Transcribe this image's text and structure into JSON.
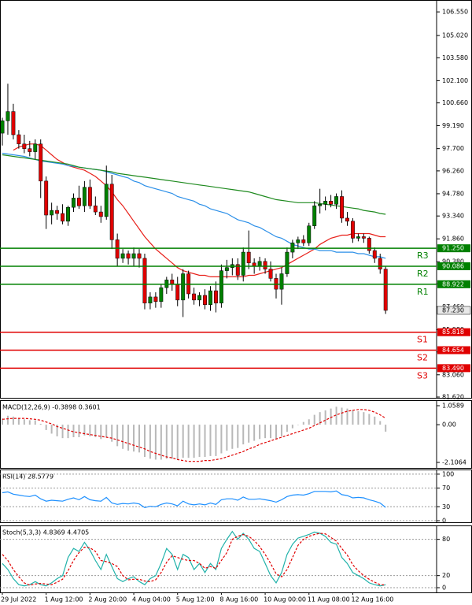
{
  "chart_data": [
    {
      "type": "candlestick",
      "categories": [
        "29 Jul 2022",
        null,
        null,
        null,
        null,
        null,
        null,
        null,
        "1 Aug 12:00",
        null,
        null,
        null,
        null,
        null,
        null,
        null,
        "2 Aug 20:00",
        null,
        null,
        null,
        null,
        null,
        null,
        null,
        "4 Aug 04:00",
        null,
        null,
        null,
        null,
        null,
        null,
        null,
        "5 Aug 12:00",
        null,
        null,
        null,
        null,
        null,
        null,
        null,
        "8 Aug 16:00",
        null,
        null,
        null,
        null,
        null,
        null,
        null,
        "10 Aug 00:00",
        null,
        null,
        null,
        null,
        null,
        null,
        null,
        "11 Aug 08:00",
        null,
        null,
        null,
        null,
        null,
        null,
        null,
        "12 Aug 16:00",
        null,
        null,
        null,
        null,
        null,
        null
      ],
      "open": [
        98.7,
        99.5,
        100.1,
        98.6,
        98.0,
        97.7,
        97.5,
        98.0,
        95.6,
        93.4,
        93.7,
        93.5,
        93.0,
        93.9,
        94.5,
        94.0,
        95.2,
        94.0,
        93.6,
        93.3,
        95.4,
        91.8,
        90.6,
        90.9,
        90.6,
        90.9,
        90.6,
        87.7,
        88.1,
        87.8,
        88.7,
        89.2,
        88.9,
        87.9,
        89.6,
        88.3,
        87.9,
        88.2,
        87.6,
        88.5,
        87.7,
        89.8,
        90.0,
        90.2,
        89.5,
        91.0,
        90.3,
        90.1,
        90.4,
        89.9,
        89.3,
        88.6,
        89.6,
        91.0,
        91.6,
        91.8,
        91.6,
        92.7,
        94.0,
        94.1,
        94.3,
        94.1,
        94.6,
        93.2,
        93.0,
        91.9,
        92.0,
        91.9,
        91.1,
        90.6,
        89.9
      ],
      "high": [
        99.7,
        101.9,
        100.6,
        98.9,
        98.6,
        98.2,
        98.3,
        98.3,
        95.9,
        94.2,
        94.0,
        94.1,
        94.0,
        94.8,
        95.3,
        95.6,
        95.7,
        94.6,
        94.0,
        96.6,
        96.0,
        92.2,
        91.2,
        91.1,
        91.3,
        91.2,
        90.9,
        88.4,
        88.4,
        88.9,
        89.4,
        89.6,
        89.4,
        89.9,
        89.8,
        88.7,
        88.4,
        88.6,
        88.8,
        89.1,
        90.2,
        90.5,
        90.6,
        90.6,
        91.3,
        92.4,
        90.6,
        90.7,
        90.6,
        90.4,
        89.6,
        90.0,
        91.3,
        91.8,
        92.0,
        92.1,
        92.9,
        94.3,
        95.1,
        94.6,
        94.7,
        94.8,
        95.0,
        93.6,
        93.2,
        92.2,
        92.2,
        92.0,
        91.3,
        90.9,
        90.1
      ],
      "low": [
        97.9,
        98.6,
        98.3,
        97.7,
        97.4,
        97.2,
        97.0,
        94.5,
        92.5,
        92.8,
        93.1,
        92.8,
        92.7,
        93.6,
        93.8,
        93.6,
        93.8,
        93.4,
        92.9,
        93.1,
        91.2,
        90.1,
        90.3,
        90.2,
        90.1,
        90.0,
        87.3,
        87.3,
        87.4,
        87.4,
        88.3,
        88.5,
        87.5,
        86.8,
        88.0,
        87.6,
        87.5,
        87.3,
        87.2,
        87.1,
        87.4,
        89.3,
        89.5,
        89.2,
        89.1,
        89.9,
        89.6,
        89.8,
        89.6,
        89.1,
        88.0,
        87.6,
        89.4,
        90.6,
        91.2,
        91.4,
        91.4,
        92.5,
        93.5,
        93.7,
        93.9,
        93.8,
        92.9,
        92.7,
        91.6,
        91.7,
        91.6,
        90.9,
        90.3,
        89.6,
        87.0
      ],
      "close": [
        99.5,
        100.1,
        98.6,
        98.0,
        97.7,
        97.5,
        98.0,
        95.6,
        93.4,
        93.7,
        93.5,
        93.0,
        93.9,
        94.5,
        94.0,
        95.2,
        94.0,
        93.6,
        93.3,
        95.4,
        91.8,
        90.6,
        90.9,
        90.6,
        90.9,
        90.6,
        87.7,
        88.1,
        87.8,
        88.7,
        89.2,
        88.9,
        87.9,
        89.6,
        88.3,
        87.9,
        88.2,
        87.6,
        88.5,
        87.7,
        89.8,
        90.0,
        90.2,
        89.5,
        91.0,
        90.3,
        90.1,
        90.4,
        89.9,
        89.3,
        88.6,
        89.6,
        91.0,
        91.6,
        91.8,
        91.6,
        92.7,
        94.0,
        94.1,
        94.3,
        94.1,
        94.6,
        93.2,
        93.0,
        91.9,
        92.0,
        91.9,
        91.1,
        90.6,
        89.9,
        87.23
      ],
      "up_color": "#008000",
      "down_color": "#e00000",
      "series": [
        {
          "color": "#e8201a",
          "values": [
            null,
            null,
            97.6,
            97.8,
            97.9,
            98.0,
            98.0,
            97.9,
            97.6,
            97.3,
            97.0,
            96.8,
            96.6,
            96.5,
            96.4,
            96.3,
            96.1,
            95.9,
            95.6,
            95.3,
            94.9,
            94.4,
            94.0,
            93.5,
            93.0,
            92.5,
            92.0,
            91.6,
            91.2,
            90.9,
            90.6,
            90.3,
            90.0,
            89.8,
            89.7,
            89.6,
            89.5,
            89.5,
            89.4,
            89.4,
            89.4,
            89.4,
            89.4,
            89.4,
            89.4,
            89.5,
            89.5,
            89.6,
            89.7,
            89.8,
            89.9,
            90.0,
            90.2,
            90.4,
            90.6,
            90.8,
            91.0,
            91.2,
            91.5,
            91.7,
            91.9,
            92.0,
            92.1,
            92.1,
            92.2,
            92.2,
            92.2,
            92.2,
            92.1,
            92.0,
            92.0
          ]
        },
        {
          "color": "#2b8fe8",
          "values": [
            97.4,
            97.35,
            97.3,
            97.25,
            97.2,
            97.1,
            97.0,
            96.9,
            96.85,
            96.8,
            96.75,
            96.7,
            96.6,
            96.55,
            96.5,
            96.45,
            96.4,
            96.35,
            96.3,
            96.2,
            96.1,
            96.0,
            95.9,
            95.8,
            95.6,
            95.5,
            95.3,
            95.2,
            95.1,
            95.0,
            94.9,
            94.8,
            94.6,
            94.5,
            94.4,
            94.3,
            94.1,
            94.0,
            93.8,
            93.7,
            93.6,
            93.5,
            93.3,
            93.1,
            93.0,
            92.9,
            92.7,
            92.6,
            92.4,
            92.2,
            92.0,
            91.9,
            91.7,
            91.5,
            91.4,
            91.3,
            91.2,
            91.2,
            91.1,
            91.1,
            91.1,
            91.0,
            91.0,
            91.0,
            91.0,
            90.9,
            90.9,
            90.8,
            90.7,
            90.7,
            90.6
          ]
        },
        {
          "color": "#1f8a1f",
          "values": [
            97.3,
            97.25,
            97.2,
            97.15,
            97.1,
            97.05,
            97.0,
            96.95,
            96.9,
            96.85,
            96.8,
            96.75,
            96.7,
            96.6,
            96.5,
            96.45,
            96.4,
            96.35,
            96.3,
            96.25,
            96.2,
            96.1,
            96.05,
            96.0,
            95.95,
            95.9,
            95.85,
            95.8,
            95.75,
            95.7,
            95.65,
            95.6,
            95.55,
            95.5,
            95.45,
            95.4,
            95.35,
            95.3,
            95.25,
            95.2,
            95.15,
            95.1,
            95.05,
            95.0,
            94.95,
            94.9,
            94.8,
            94.7,
            94.6,
            94.5,
            94.4,
            94.35,
            94.3,
            94.25,
            94.2,
            94.2,
            94.2,
            94.2,
            94.15,
            94.1,
            94.05,
            94.0,
            93.95,
            93.9,
            93.85,
            93.8,
            93.7,
            93.65,
            93.6,
            93.5,
            93.45
          ]
        }
      ],
      "ylim": [
        81.57,
        107.32
      ],
      "yticks": [
        {
          "value": 106.55,
          "label": "106.550"
        },
        {
          "value": 105.02,
          "label": "105.020"
        },
        {
          "value": 103.58,
          "label": "103.580"
        },
        {
          "value": 102.1,
          "label": "102.100"
        },
        {
          "value": 100.66,
          "label": "100.660"
        },
        {
          "value": 99.19,
          "label": "99.190"
        },
        {
          "value": 97.7,
          "label": "97.700"
        },
        {
          "value": 96.26,
          "label": "96.260"
        },
        {
          "value": 94.78,
          "label": "94.780"
        },
        {
          "value": 93.34,
          "label": "93.340"
        },
        {
          "value": 91.86,
          "label": "91.860"
        },
        {
          "value": 90.38,
          "label": "90.380"
        },
        {
          "value": 88.94,
          "label": "88.940"
        },
        {
          "value": 87.46,
          "label": "87.460"
        },
        {
          "value": 85.98,
          "label": "85.980"
        },
        {
          "value": 84.54,
          "label": "84.540"
        },
        {
          "value": 83.06,
          "label": "83.060"
        },
        {
          "value": 81.62,
          "label": "81.620"
        }
      ],
      "levels": [
        {
          "name": "R3",
          "value": 91.25,
          "label": "91.250",
          "color": "#008000"
        },
        {
          "name": "R2",
          "value": 90.086,
          "label": "90.086",
          "color": "#008000"
        },
        {
          "name": "R1",
          "value": 88.922,
          "label": "88.922",
          "color": "#008000"
        },
        {
          "name": "S1",
          "value": 85.818,
          "label": "85.818",
          "color": "#e00000"
        },
        {
          "name": "S2",
          "value": 84.654,
          "label": "84.654",
          "color": "#e00000"
        },
        {
          "name": "S3",
          "value": 83.49,
          "label": "83.490",
          "color": "#e00000"
        }
      ],
      "last": {
        "value": 87.23,
        "label": "87.230"
      },
      "grid": false
    },
    {
      "type": "macd",
      "title": "MACD(12,26,9) -0.3898 0.3601",
      "series": [
        {
          "type": "bar",
          "color": "#b8b8b8",
          "values": [
            0.35,
            0.5,
            0.45,
            0.35,
            0.3,
            0.25,
            0.25,
            0.05,
            -0.3,
            -0.5,
            -0.65,
            -0.75,
            -0.75,
            -0.7,
            -0.7,
            -0.6,
            -0.65,
            -0.7,
            -0.8,
            -0.7,
            -0.95,
            -1.2,
            -1.35,
            -1.45,
            -1.5,
            -1.55,
            -1.8,
            -1.9,
            -1.95,
            -1.95,
            -1.9,
            -1.9,
            -1.95,
            -1.85,
            -1.85,
            -1.85,
            -1.8,
            -1.8,
            -1.75,
            -1.75,
            -1.6,
            -1.45,
            -1.35,
            -1.3,
            -1.1,
            -1.0,
            -0.9,
            -0.8,
            -0.75,
            -0.75,
            -0.8,
            -0.65,
            -0.4,
            -0.2,
            0.0,
            0.15,
            0.3,
            0.55,
            0.7,
            0.8,
            0.9,
            1.0,
            0.95,
            0.9,
            0.8,
            0.75,
            0.7,
            0.6,
            0.45,
            0.2,
            -0.3898
          ]
        },
        {
          "type": "line",
          "color": "#e00000",
          "dashed": true,
          "values": [
            0.3,
            0.33,
            0.35,
            0.35,
            0.35,
            0.33,
            0.3,
            0.25,
            0.15,
            0.05,
            -0.1,
            -0.2,
            -0.3,
            -0.4,
            -0.45,
            -0.5,
            -0.55,
            -0.6,
            -0.65,
            -0.7,
            -0.75,
            -0.85,
            -0.95,
            -1.05,
            -1.15,
            -1.25,
            -1.35,
            -1.5,
            -1.6,
            -1.7,
            -1.8,
            -1.85,
            -1.95,
            -2.0,
            -2.05,
            -2.05,
            -2.05,
            -2.0,
            -2.0,
            -1.95,
            -1.9,
            -1.8,
            -1.7,
            -1.6,
            -1.5,
            -1.35,
            -1.25,
            -1.1,
            -1.0,
            -0.9,
            -0.8,
            -0.7,
            -0.6,
            -0.5,
            -0.4,
            -0.3,
            -0.2,
            -0.05,
            0.1,
            0.25,
            0.4,
            0.55,
            0.65,
            0.75,
            0.8,
            0.85,
            0.85,
            0.8,
            0.7,
            0.55,
            0.3601
          ]
        }
      ],
      "ylim": [
        -2.414,
        1.367
      ],
      "yticks": [
        {
          "value": 1.0589,
          "label": "1.0589"
        },
        {
          "value": 0,
          "label": "0.00"
        },
        {
          "value": -2.1064,
          "label": "-2.1064"
        }
      ],
      "grid": false
    },
    {
      "type": "line",
      "title": "RSI(14) 28.5779",
      "series": [
        {
          "color": "#1e90ff",
          "values": [
            60,
            62,
            57,
            55,
            53,
            52,
            55,
            47,
            42,
            44,
            43,
            42,
            46,
            49,
            45,
            52,
            45,
            43,
            42,
            50,
            38,
            35,
            37,
            36,
            38,
            36,
            28,
            31,
            30,
            35,
            38,
            36,
            32,
            42,
            36,
            34,
            36,
            34,
            38,
            35,
            45,
            47,
            47,
            44,
            51,
            46,
            46,
            47,
            45,
            43,
            40,
            45,
            52,
            55,
            56,
            55,
            58,
            63,
            63,
            63,
            62,
            64,
            56,
            54,
            49,
            50,
            49,
            45,
            42,
            38,
            28.5779
          ]
        }
      ],
      "ylim": [
        -3.4,
        110
      ],
      "yticks": [
        100,
        70,
        30,
        0
      ],
      "grid": true
    },
    {
      "type": "line",
      "title": "Stoch(5,3,3) 4.8369 4.4705",
      "series": [
        {
          "color": "#20b2aa",
          "values": [
            40,
            30,
            15,
            5,
            3,
            5,
            10,
            5,
            3,
            8,
            15,
            20,
            50,
            65,
            60,
            75,
            62,
            45,
            30,
            55,
            35,
            15,
            10,
            15,
            18,
            10,
            5,
            15,
            20,
            40,
            65,
            55,
            30,
            55,
            50,
            30,
            40,
            25,
            40,
            30,
            65,
            80,
            93,
            80,
            90,
            80,
            65,
            60,
            40,
            20,
            8,
            25,
            55,
            72,
            82,
            85,
            88,
            92,
            90,
            85,
            75,
            72,
            50,
            40,
            25,
            20,
            15,
            8,
            5,
            3,
            4.8369
          ]
        },
        {
          "color": "#e00000",
          "dashed": true,
          "values": [
            55,
            45,
            30,
            18,
            8,
            4,
            6,
            7,
            6,
            5,
            9,
            14,
            28,
            45,
            58,
            67,
            66,
            60,
            45,
            43,
            40,
            35,
            20,
            13,
            14,
            14,
            11,
            10,
            13,
            25,
            42,
            53,
            50,
            47,
            45,
            45,
            40,
            32,
            35,
            32,
            45,
            58,
            80,
            85,
            88,
            85,
            78,
            68,
            55,
            40,
            23,
            18,
            30,
            50,
            70,
            80,
            85,
            88,
            90,
            89,
            83,
            77,
            65,
            54,
            38,
            28,
            20,
            14,
            9,
            5,
            4.4705
          ]
        }
      ],
      "ylim": [
        -7.8,
        103
      ],
      "yticks": [
        80,
        20,
        0
      ],
      "grid": true
    }
  ]
}
